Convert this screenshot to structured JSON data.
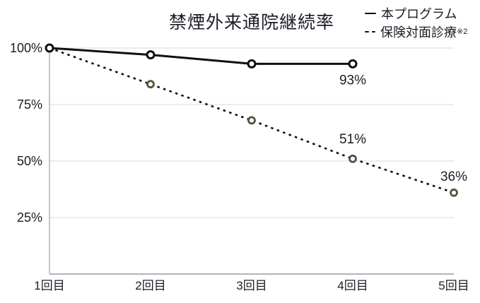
{
  "chart_title": "禁煙外来通院継続率",
  "legend": {
    "items": [
      {
        "label": "本プログラム",
        "style": "solid"
      },
      {
        "label": "保険対面診療",
        "note": "※2",
        "style": "dashed"
      }
    ]
  },
  "colors": {
    "line": "#0f0f14",
    "solid_marker": "#0f0f14",
    "dashed_marker": "#55513f",
    "marker_fill": "#ffffff",
    "grid": "#d8d8dd",
    "axis": "#b2b2b9",
    "text": "#1c1c26"
  },
  "chart_data": {
    "type": "line",
    "title": "禁煙外来通院継続率",
    "categories": [
      "1回目",
      "2回目",
      "3回目",
      "4回目",
      "5回目"
    ],
    "y_ticks": [
      {
        "label": "100%",
        "value": 100
      },
      {
        "label": "75%",
        "value": 75
      },
      {
        "label": "50%",
        "value": 50
      },
      {
        "label": "25%",
        "value": 25
      }
    ],
    "ylim": [
      0,
      100
    ],
    "grid": true,
    "legend_position": "top-right",
    "series": [
      {
        "name": "本プログラム",
        "line_style": "solid",
        "color": "#0f0f14",
        "marker_color": "#0f0f14",
        "values": [
          100,
          97,
          93,
          93,
          null
        ]
      },
      {
        "name": "保険対面診療※2",
        "line_style": "dashed",
        "color": "#0f0f14",
        "marker_color": "#55513f",
        "values": [
          100,
          84,
          68,
          51,
          36
        ]
      }
    ],
    "point_labels": [
      {
        "series": 0,
        "index": 3,
        "text": "93%",
        "dy": 29
      },
      {
        "series": 1,
        "index": 3,
        "text": "51%",
        "dy": -22
      },
      {
        "series": 1,
        "index": 4,
        "text": "36%",
        "dy": -17
      }
    ]
  }
}
